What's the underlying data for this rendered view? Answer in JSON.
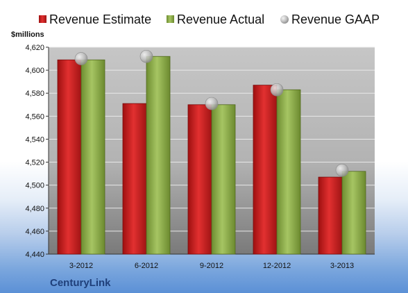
{
  "chart_data": {
    "type": "bar",
    "unit_label": "$millions",
    "company": "CenturyLink",
    "categories": [
      "3-2012",
      "6-2012",
      "9-2012",
      "12-2012",
      "3-2013"
    ],
    "series": [
      {
        "name": "Revenue Estimate",
        "kind": "bar",
        "color": "#d42020",
        "values": [
          4609,
          4571,
          4570,
          4587,
          4507
        ]
      },
      {
        "name": "Revenue Actual",
        "kind": "bar",
        "color": "#8fb04a",
        "values": [
          4609,
          4612,
          4570,
          4583,
          4512
        ]
      },
      {
        "name": "Revenue GAAP",
        "kind": "marker",
        "color": "#b9b9b9",
        "values": [
          4610,
          4612,
          4571,
          4583,
          4513
        ]
      }
    ],
    "ylim": [
      4440,
      4620
    ],
    "yticks": [
      "4,440",
      "4,460",
      "4,480",
      "4,500",
      "4,520",
      "4,540",
      "4,560",
      "4,580",
      "4,600",
      "4,620"
    ],
    "grid": true,
    "legend_position": "top"
  }
}
